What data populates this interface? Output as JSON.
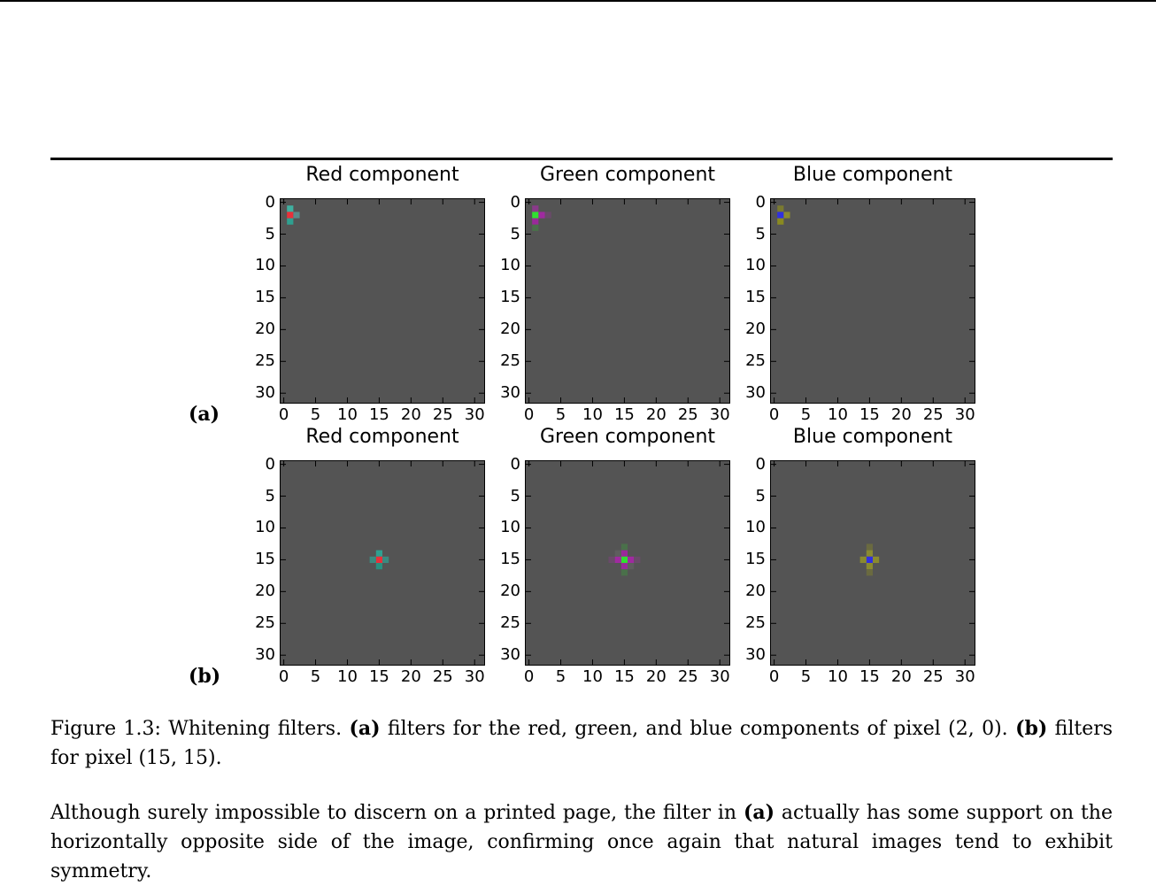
{
  "figure": {
    "panels": [
      {
        "label": "(a)",
        "plots": [
          {
            "title": "Red component",
            "pixels": [
              {
                "row": 1,
                "col": 1,
                "color": "#3fb0a0"
              },
              {
                "row": 2,
                "col": 1,
                "color": "#e8303a"
              },
              {
                "row": 3,
                "col": 1,
                "color": "#2fa090"
              },
              {
                "row": 2,
                "col": 2,
                "color": "#5a8a8a"
              }
            ]
          },
          {
            "title": "Green component",
            "pixels": [
              {
                "row": 1,
                "col": 1,
                "color": "#8a3a8a"
              },
              {
                "row": 2,
                "col": 1,
                "color": "#30e030"
              },
              {
                "row": 3,
                "col": 1,
                "color": "#9a2a9a"
              },
              {
                "row": 2,
                "col": 2,
                "color": "#a02aa0"
              },
              {
                "row": 2,
                "col": 3,
                "color": "#6a4a6a"
              },
              {
                "row": 4,
                "col": 1,
                "color": "#4a704a"
              }
            ]
          },
          {
            "title": "Blue component",
            "pixels": [
              {
                "row": 1,
                "col": 1,
                "color": "#7a7a30"
              },
              {
                "row": 2,
                "col": 1,
                "color": "#3030e0"
              },
              {
                "row": 3,
                "col": 1,
                "color": "#8a8a20"
              },
              {
                "row": 2,
                "col": 2,
                "color": "#8a8a30"
              }
            ]
          }
        ]
      },
      {
        "label": "(b)",
        "plots": [
          {
            "title": "Red component",
            "pixels": [
              {
                "row": 14,
                "col": 15,
                "color": "#2fa090"
              },
              {
                "row": 15,
                "col": 15,
                "color": "#e8303a"
              },
              {
                "row": 16,
                "col": 15,
                "color": "#2a9080"
              },
              {
                "row": 15,
                "col": 14,
                "color": "#3a8a80"
              },
              {
                "row": 15,
                "col": 16,
                "color": "#3a8a80"
              }
            ]
          },
          {
            "title": "Green component",
            "pixels": [
              {
                "row": 13,
                "col": 15,
                "color": "#4a704a"
              },
              {
                "row": 14,
                "col": 15,
                "color": "#9a2a9a"
              },
              {
                "row": 15,
                "col": 15,
                "color": "#30e030"
              },
              {
                "row": 16,
                "col": 15,
                "color": "#9a2a9a"
              },
              {
                "row": 17,
                "col": 15,
                "color": "#4a704a"
              },
              {
                "row": 15,
                "col": 14,
                "color": "#a02aa0"
              },
              {
                "row": 15,
                "col": 16,
                "color": "#a02aa0"
              },
              {
                "row": 15,
                "col": 13,
                "color": "#6a4a6a"
              },
              {
                "row": 15,
                "col": 17,
                "color": "#6a4a6a"
              },
              {
                "row": 14,
                "col": 14,
                "color": "#5e5e5e"
              },
              {
                "row": 16,
                "col": 16,
                "color": "#5e5e5e"
              }
            ]
          },
          {
            "title": "Blue component",
            "pixels": [
              {
                "row": 13,
                "col": 15,
                "color": "#6a6a40"
              },
              {
                "row": 14,
                "col": 15,
                "color": "#8a8a30"
              },
              {
                "row": 15,
                "col": 15,
                "color": "#3030e0"
              },
              {
                "row": 16,
                "col": 15,
                "color": "#8a8a30"
              },
              {
                "row": 17,
                "col": 15,
                "color": "#6a6a40"
              },
              {
                "row": 15,
                "col": 14,
                "color": "#8a8a30"
              },
              {
                "row": 15,
                "col": 16,
                "color": "#8a8a30"
              }
            ]
          }
        ]
      }
    ],
    "grid_size": 32,
    "axis": {
      "x_ticks": [
        "0",
        "5",
        "10",
        "15",
        "20",
        "25",
        "30"
      ],
      "y_ticks": [
        "0",
        "5",
        "10",
        "15",
        "20",
        "25",
        "30"
      ],
      "tick_values": [
        0,
        5,
        10,
        15,
        20,
        25,
        30
      ],
      "background_color": "#545454"
    },
    "caption": {
      "prefix": "Figure 1.3: Whitening filters.",
      "a_label": "(a)",
      "a_text": "filters for the red, green, and blue components of pixel (2, 0).",
      "b_label": "(b)",
      "b_text": "filters for pixel (15, 15)."
    }
  },
  "body": {
    "part1": "Although surely impossible to discern on a printed page, the filter in",
    "ref": "(a)",
    "part2": "actually has some support on the horizontally opposite side of the image, confirming once again that natural images tend to exhibit symmetry."
  }
}
